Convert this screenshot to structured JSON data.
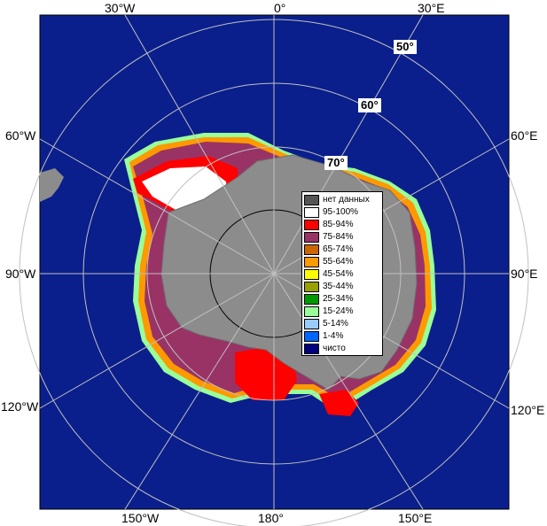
{
  "map": {
    "longitude_labels": {
      "top": [
        "30°W",
        "0°",
        "30°E"
      ],
      "bottom": [
        "150°W",
        "180°",
        "150°E"
      ],
      "left": [
        "60°W",
        "90°W",
        "120°W"
      ],
      "right": [
        "60°E",
        "90°E",
        "120°E"
      ]
    },
    "latitude_labels": [
      "50°",
      "60°",
      "70°"
    ],
    "colors": {
      "ocean": "#0a1f8c",
      "land": "#8c8c8c",
      "graticule": "#c0c0c0"
    }
  },
  "legend": {
    "items": [
      {
        "label": "нет данных",
        "color": "#555555"
      },
      {
        "label": "95-100%",
        "color": "#ffffff"
      },
      {
        "label": "85-94%",
        "color": "#ff0000"
      },
      {
        "label": "75-84%",
        "color": "#993366"
      },
      {
        "label": "65-74%",
        "color": "#cc6600"
      },
      {
        "label": "55-64%",
        "color": "#ff9900"
      },
      {
        "label": "45-54%",
        "color": "#ffff00"
      },
      {
        "label": "35-44%",
        "color": "#99a000"
      },
      {
        "label": "25-34%",
        "color": "#009900"
      },
      {
        "label": "15-24%",
        "color": "#99ff99"
      },
      {
        "label": "5-14%",
        "color": "#99ccff"
      },
      {
        "label": "1-4%",
        "color": "#0066ff"
      },
      {
        "label": "чисто",
        "color": "#000080"
      }
    ]
  }
}
